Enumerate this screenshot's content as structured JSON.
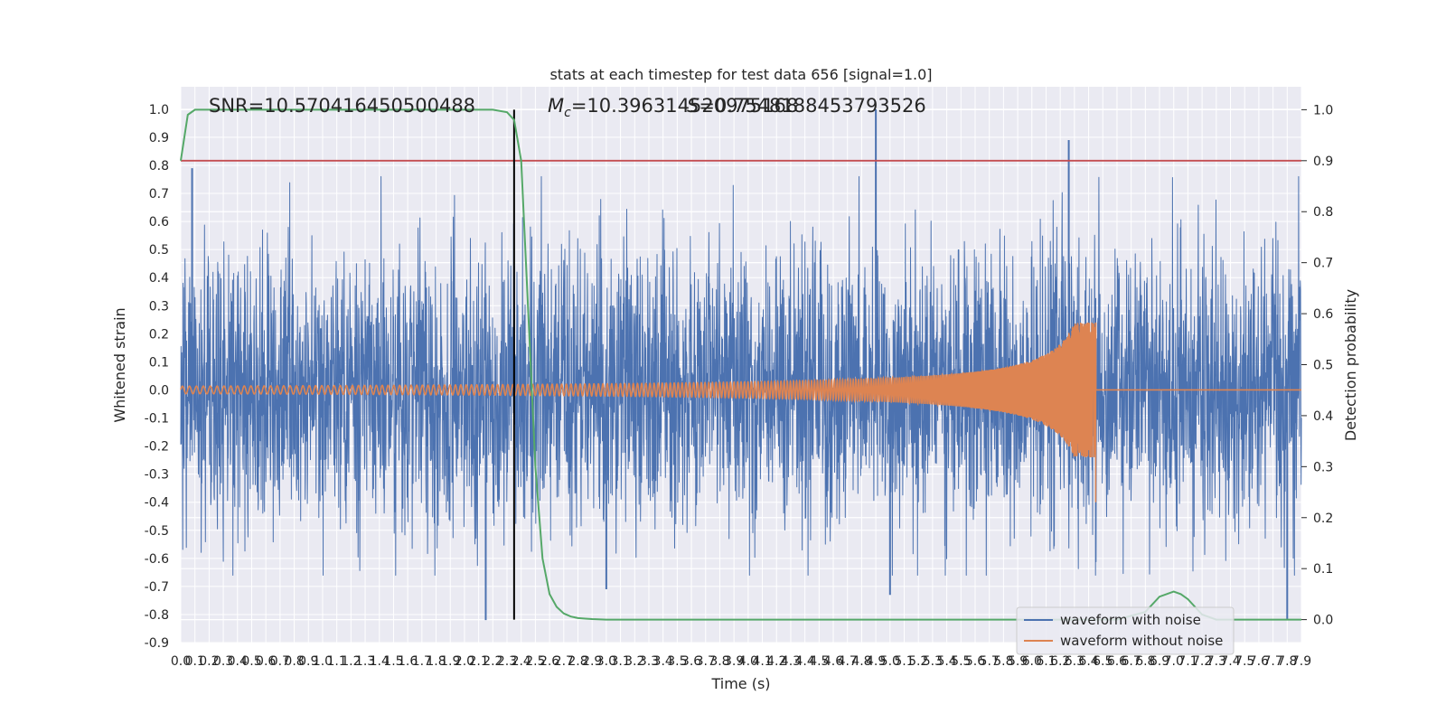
{
  "chart_data": {
    "type": "line",
    "title": "stats at each timestep for test data 656 [signal=1.0]",
    "xlabel": "Time (s)",
    "ylabel": "Whitened strain",
    "y2label": "Detection probability",
    "xlim": [
      0.0,
      7.9
    ],
    "ylim": [
      -0.9,
      1.08
    ],
    "y2lim": [
      -0.045,
      1.045
    ],
    "xticks": [
      "0.0",
      "0.1",
      "0.2",
      "0.3",
      "0.4",
      "0.5",
      "0.6",
      "0.7",
      "0.8",
      "0.9",
      "1.0",
      "1.1",
      "1.2",
      "1.3",
      "1.4",
      "1.5",
      "1.6",
      "1.7",
      "1.8",
      "1.9",
      "2.0",
      "2.1",
      "2.2",
      "2.3",
      "2.4",
      "2.5",
      "2.6",
      "2.7",
      "2.8",
      "2.9",
      "3.0",
      "3.1",
      "3.2",
      "3.3",
      "3.4",
      "3.5",
      "3.6",
      "3.7",
      "3.8",
      "3.9",
      "4.0",
      "4.1",
      "4.2",
      "4.3",
      "4.4",
      "4.5",
      "4.6",
      "4.7",
      "4.8",
      "4.9",
      "5.0",
      "5.1",
      "5.2",
      "5.3",
      "5.4",
      "5.5",
      "5.6",
      "5.7",
      "5.8",
      "5.9",
      "6.0",
      "6.1",
      "6.2",
      "6.3",
      "6.4",
      "6.5",
      "6.6",
      "6.7",
      "6.8",
      "6.9",
      "7.0",
      "7.1",
      "7.2",
      "7.3",
      "7.4",
      "7.5",
      "7.6",
      "7.7",
      "7.8",
      "7.9"
    ],
    "yticks": [
      "-0.9",
      "-0.8",
      "-0.7",
      "-0.6",
      "-0.5",
      "-0.4",
      "-0.3",
      "-0.2",
      "-0.1",
      "0.0",
      "0.1",
      "0.2",
      "0.3",
      "0.4",
      "0.5",
      "0.6",
      "0.7",
      "0.8",
      "0.9",
      "1.0"
    ],
    "y2ticks": [
      "0.0",
      "0.1",
      "0.2",
      "0.3",
      "0.4",
      "0.5",
      "0.6",
      "0.7",
      "0.8",
      "0.9",
      "1.0"
    ],
    "annotations": {
      "snr": "SNR=10.570416450500488",
      "mc": "=10.396314520975168",
      "mc_symbol": "M",
      "mc_sub": "c",
      "overlap": "=0.7548188453793526"
    },
    "threshold": 0.9,
    "event_time": 2.35,
    "merger_time": 6.45,
    "noise_sigma": 0.27,
    "noise_outliers": [
      {
        "t": 4.9,
        "v": 1.0
      },
      {
        "t": 6.26,
        "v": 0.89
      },
      {
        "t": 0.08,
        "v": 0.79
      },
      {
        "t": 2.15,
        "v": -0.82
      },
      {
        "t": 7.8,
        "v": -0.82
      },
      {
        "t": 5.0,
        "v": -0.73
      },
      {
        "t": 3.0,
        "v": -0.71
      }
    ],
    "detection_probability": {
      "t": [
        0.0,
        0.05,
        0.1,
        0.2,
        0.4,
        0.8,
        1.2,
        1.6,
        2.0,
        2.2,
        2.3,
        2.35,
        2.4,
        2.45,
        2.5,
        2.55,
        2.6,
        2.65,
        2.7,
        2.75,
        2.8,
        2.85,
        2.9,
        3.0,
        3.5,
        4.0,
        5.0,
        6.0,
        6.6,
        6.8,
        6.9,
        7.0,
        7.05,
        7.1,
        7.2,
        7.3,
        7.5,
        7.8,
        7.9
      ],
      "p": [
        0.9,
        0.99,
        1.0,
        1.0,
        1.0,
        1.0,
        1.0,
        1.0,
        1.0,
        1.0,
        0.995,
        0.98,
        0.9,
        0.6,
        0.3,
        0.12,
        0.05,
        0.025,
        0.012,
        0.006,
        0.003,
        0.002,
        0.001,
        0.0,
        0.0,
        0.0,
        0.0,
        0.0,
        0.0,
        0.015,
        0.045,
        0.055,
        0.05,
        0.04,
        0.01,
        0.0,
        0.0,
        0.0,
        0.0
      ]
    },
    "series": [
      {
        "name": "waveform with noise",
        "color": "#4c72b0"
      },
      {
        "name": "waveform without noise",
        "color": "#dd8452"
      },
      {
        "name": "detection probability",
        "color": "#55a868"
      },
      {
        "name": "threshold",
        "color": "#c44e52"
      },
      {
        "name": "event marker",
        "color": "#000000"
      }
    ],
    "legend": [
      "waveform with noise",
      "waveform without noise"
    ],
    "legend_position": "lower-right"
  }
}
